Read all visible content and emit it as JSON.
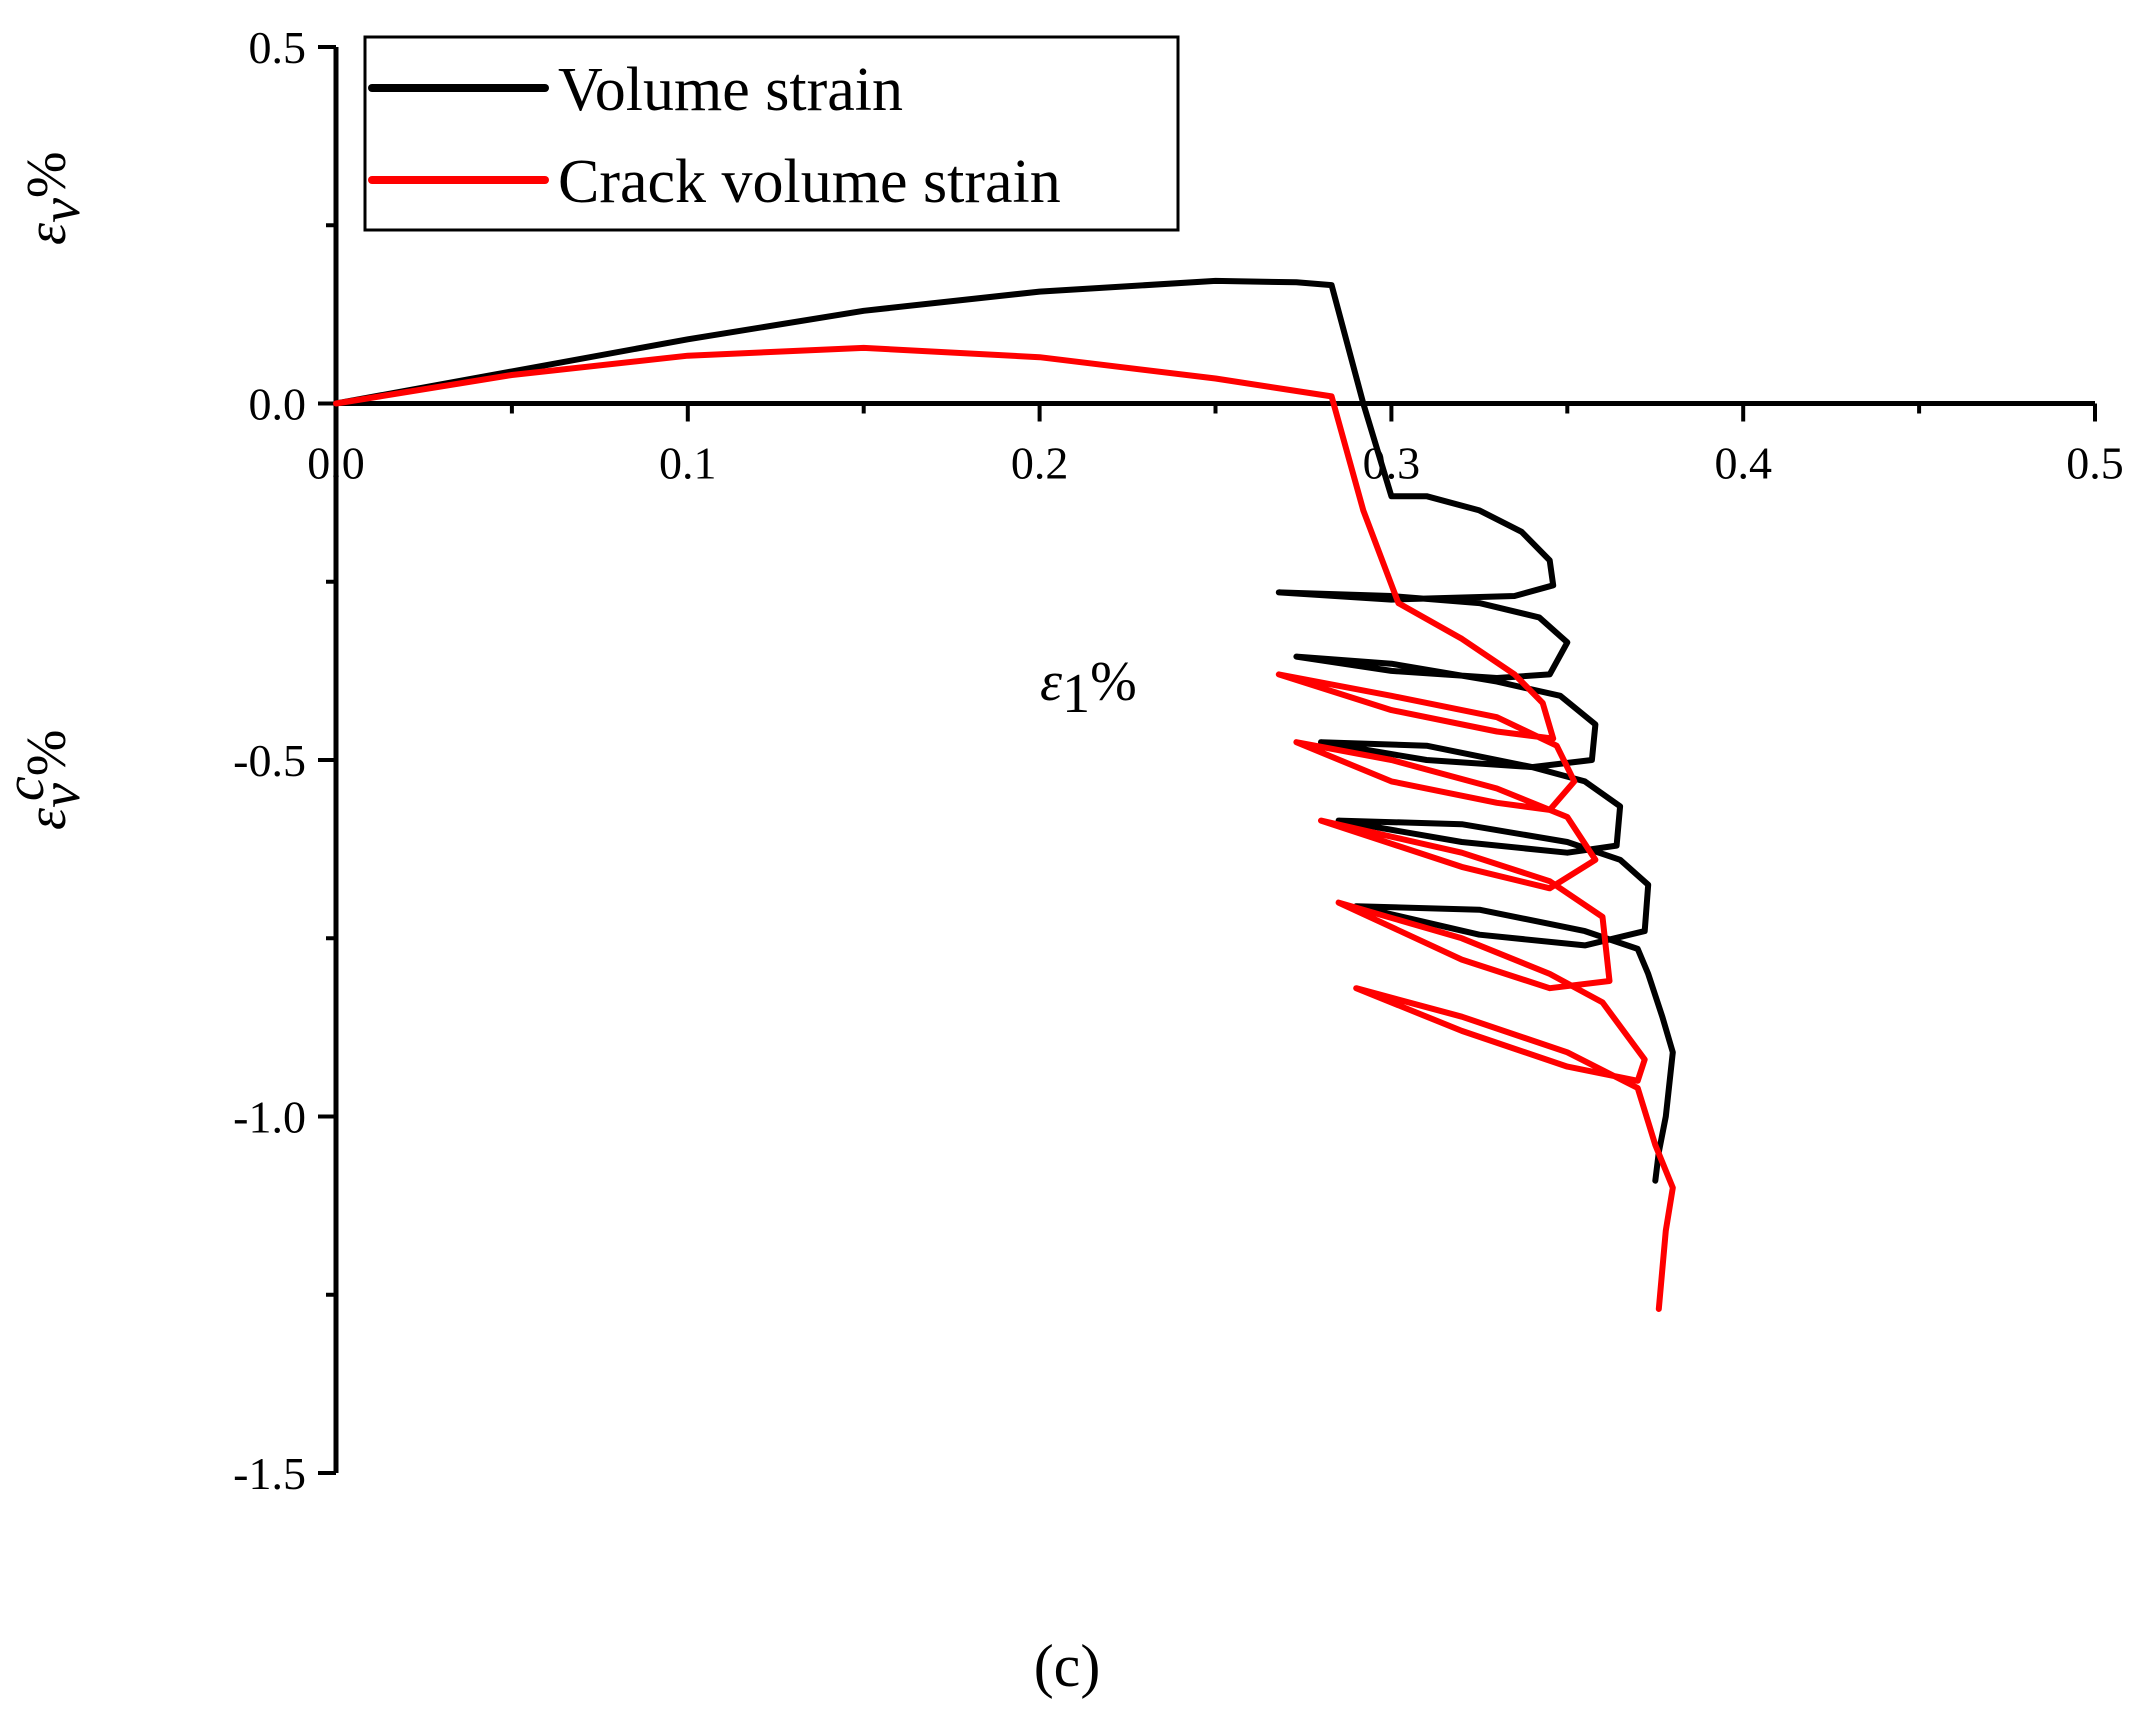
{
  "chart_data": {
    "type": "line",
    "title": "",
    "xlabel_symbol": "ε",
    "xlabel_sub": "1",
    "xlabel_unit": "%",
    "ylabel_top_symbol": "ε",
    "ylabel_top_sub": "v",
    "ylabel_top_unit": "%",
    "ylabel_bottom_symbol": "ε",
    "ylabel_bottom_sup": "c",
    "ylabel_bottom_sub": "v",
    "ylabel_bottom_unit": "%",
    "xlim": [
      0.0,
      0.5
    ],
    "ylim": [
      -1.5,
      0.5
    ],
    "x_ticks": [
      "0.0",
      "0.1",
      "0.2",
      "0.3",
      "0.4",
      "0.5"
    ],
    "y_ticks": [
      "0.5",
      "0.0",
      "-0.5",
      "-1.0",
      "-1.5"
    ],
    "legend_position": "top-left",
    "panel_label": "(c)",
    "series": [
      {
        "name": "Volume strain",
        "color": "#000000",
        "points": [
          [
            0.0,
            0.0
          ],
          [
            0.05,
            0.045
          ],
          [
            0.1,
            0.09
          ],
          [
            0.15,
            0.13
          ],
          [
            0.2,
            0.157
          ],
          [
            0.25,
            0.172
          ],
          [
            0.273,
            0.17
          ],
          [
            0.283,
            0.166
          ],
          [
            0.292,
            0.0
          ],
          [
            0.3,
            -0.13
          ],
          [
            0.31,
            -0.13
          ],
          [
            0.325,
            -0.15
          ],
          [
            0.337,
            -0.18
          ],
          [
            0.345,
            -0.22
          ],
          [
            0.346,
            -0.255
          ],
          [
            0.335,
            -0.27
          ],
          [
            0.3,
            -0.275
          ],
          [
            0.268,
            -0.265
          ],
          [
            0.3,
            -0.27
          ],
          [
            0.325,
            -0.28
          ],
          [
            0.342,
            -0.3
          ],
          [
            0.35,
            -0.335
          ],
          [
            0.345,
            -0.38
          ],
          [
            0.33,
            -0.385
          ],
          [
            0.3,
            -0.375
          ],
          [
            0.273,
            -0.355
          ],
          [
            0.3,
            -0.365
          ],
          [
            0.33,
            -0.39
          ],
          [
            0.348,
            -0.41
          ],
          [
            0.358,
            -0.45
          ],
          [
            0.357,
            -0.5
          ],
          [
            0.34,
            -0.51
          ],
          [
            0.31,
            -0.5
          ],
          [
            0.28,
            -0.475
          ],
          [
            0.31,
            -0.48
          ],
          [
            0.34,
            -0.51
          ],
          [
            0.355,
            -0.53
          ],
          [
            0.365,
            -0.565
          ],
          [
            0.364,
            -0.62
          ],
          [
            0.35,
            -0.63
          ],
          [
            0.32,
            -0.615
          ],
          [
            0.285,
            -0.585
          ],
          [
            0.32,
            -0.59
          ],
          [
            0.35,
            -0.615
          ],
          [
            0.365,
            -0.64
          ],
          [
            0.373,
            -0.675
          ],
          [
            0.372,
            -0.74
          ],
          [
            0.355,
            -0.76
          ],
          [
            0.325,
            -0.745
          ],
          [
            0.29,
            -0.705
          ],
          [
            0.325,
            -0.71
          ],
          [
            0.355,
            -0.74
          ],
          [
            0.37,
            -0.765
          ],
          [
            0.373,
            -0.8
          ],
          [
            0.377,
            -0.86
          ],
          [
            0.38,
            -0.91
          ],
          [
            0.378,
            -1.0
          ],
          [
            0.376,
            -1.05
          ],
          [
            0.375,
            -1.09
          ]
        ]
      },
      {
        "name": "Crack volume strain",
        "color": "#ff0000",
        "points": [
          [
            0.0,
            0.0
          ],
          [
            0.05,
            0.04
          ],
          [
            0.1,
            0.067
          ],
          [
            0.15,
            0.078
          ],
          [
            0.2,
            0.065
          ],
          [
            0.25,
            0.035
          ],
          [
            0.283,
            0.01
          ],
          [
            0.292,
            -0.15
          ],
          [
            0.302,
            -0.28
          ],
          [
            0.32,
            -0.33
          ],
          [
            0.335,
            -0.38
          ],
          [
            0.343,
            -0.42
          ],
          [
            0.346,
            -0.47
          ],
          [
            0.33,
            -0.46
          ],
          [
            0.3,
            -0.43
          ],
          [
            0.268,
            -0.38
          ],
          [
            0.3,
            -0.41
          ],
          [
            0.33,
            -0.44
          ],
          [
            0.347,
            -0.48
          ],
          [
            0.352,
            -0.53
          ],
          [
            0.345,
            -0.57
          ],
          [
            0.33,
            -0.56
          ],
          [
            0.3,
            -0.53
          ],
          [
            0.273,
            -0.475
          ],
          [
            0.3,
            -0.5
          ],
          [
            0.33,
            -0.54
          ],
          [
            0.35,
            -0.58
          ],
          [
            0.358,
            -0.64
          ],
          [
            0.345,
            -0.68
          ],
          [
            0.32,
            -0.65
          ],
          [
            0.28,
            -0.585
          ],
          [
            0.32,
            -0.63
          ],
          [
            0.345,
            -0.67
          ],
          [
            0.36,
            -0.72
          ],
          [
            0.362,
            -0.81
          ],
          [
            0.345,
            -0.82
          ],
          [
            0.32,
            -0.78
          ],
          [
            0.285,
            -0.7
          ],
          [
            0.32,
            -0.75
          ],
          [
            0.345,
            -0.8
          ],
          [
            0.36,
            -0.84
          ],
          [
            0.372,
            -0.92
          ],
          [
            0.37,
            -0.95
          ],
          [
            0.35,
            -0.93
          ],
          [
            0.32,
            -0.88
          ],
          [
            0.29,
            -0.82
          ],
          [
            0.32,
            -0.86
          ],
          [
            0.35,
            -0.91
          ],
          [
            0.37,
            -0.96
          ],
          [
            0.375,
            -1.04
          ],
          [
            0.38,
            -1.1
          ],
          [
            0.378,
            -1.16
          ],
          [
            0.376,
            -1.27
          ]
        ]
      }
    ]
  }
}
